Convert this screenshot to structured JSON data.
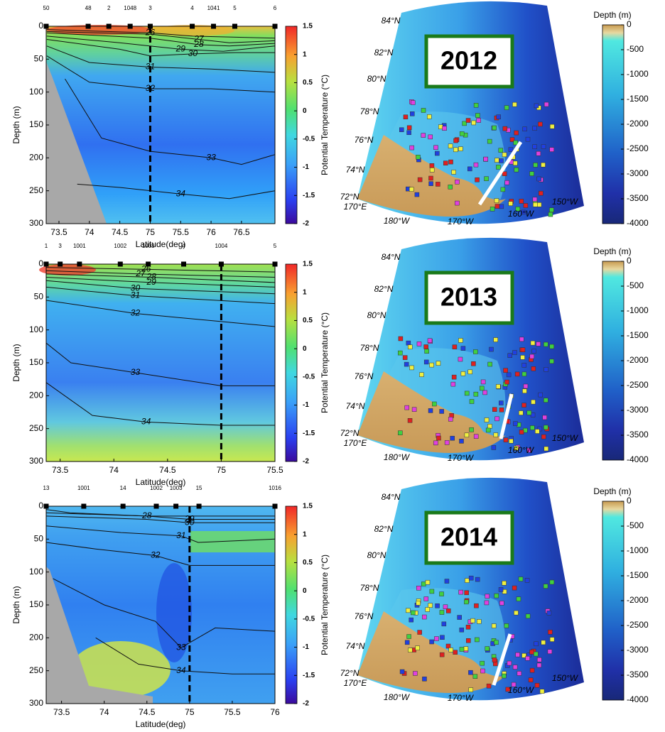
{
  "chart_data": [
    {
      "type": "section",
      "xlabel": "Latitude(deg)",
      "ylabel": "Depth (m)",
      "xlim": [
        73.29,
        77.05
      ],
      "xticks": [
        73.5,
        74,
        74.5,
        75,
        75.5,
        76,
        76.5
      ],
      "ylim": [
        0,
        300
      ],
      "yticks": [
        0,
        50,
        100,
        150,
        200,
        250,
        300
      ],
      "stations": {
        "labels": [
          "50",
          "48",
          "2",
          "1048",
          "3",
          "4",
          "1041",
          "5",
          "6"
        ],
        "x": [
          73.29,
          73.98,
          74.32,
          74.67,
          75.0,
          75.69,
          76.04,
          76.39,
          77.05
        ]
      },
      "marker_x": 75,
      "contours": [
        {
          "label": "26",
          "x": [
            73.3,
            74.3,
            75.0,
            75.7,
            77.05
          ],
          "y": [
            5,
            8,
            10,
            15,
            18
          ]
        },
        {
          "label": "27",
          "x": [
            73.3,
            75.0,
            75.8,
            76.3,
            77.05
          ],
          "y": [
            8,
            12,
            20,
            25,
            22
          ]
        },
        {
          "label": "28",
          "x": [
            73.3,
            75.0,
            75.8,
            76.3,
            77.05
          ],
          "y": [
            10,
            18,
            28,
            30,
            26
          ]
        },
        {
          "label": "29",
          "x": [
            73.3,
            74.5,
            75.5,
            76.2,
            77.05
          ],
          "y": [
            15,
            25,
            35,
            38,
            30
          ]
        },
        {
          "label": "30",
          "x": [
            73.3,
            74.5,
            75.0,
            75.7,
            76.4,
            77.05
          ],
          "y": [
            20,
            35,
            45,
            42,
            40,
            40
          ]
        },
        {
          "label": "31",
          "x": [
            73.3,
            74.0,
            75.0,
            76.0,
            77.05
          ],
          "y": [
            30,
            55,
            62,
            65,
            70
          ]
        },
        {
          "label": "32",
          "x": [
            73.3,
            74.0,
            75.0,
            76.0,
            77.05
          ],
          "y": [
            45,
            85,
            95,
            95,
            100
          ]
        },
        {
          "label": "33",
          "x": [
            73.6,
            74.2,
            75.0,
            76.0,
            76.5,
            77.05
          ],
          "y": [
            80,
            170,
            190,
            200,
            210,
            195
          ]
        },
        {
          "label": "34",
          "x": [
            73.8,
            74.5,
            75.5,
            76.3,
            77.05
          ],
          "y": [
            240,
            245,
            255,
            262,
            250
          ]
        }
      ],
      "colorbar": {
        "label": "Potential Temperature (°C)",
        "lim": [
          -2,
          1.5
        ],
        "ticks": [
          1.5,
          1,
          0.5,
          0,
          -0.5,
          -1,
          -1.5,
          -2
        ]
      }
    },
    {
      "type": "section",
      "xlabel": "Latitude(deg)",
      "ylabel": "Depth (m)",
      "xlim": [
        73.37,
        75.5
      ],
      "xticks": [
        73.5,
        74,
        74.5,
        75,
        75.5
      ],
      "ylim": [
        0,
        300
      ],
      "yticks": [
        0,
        50,
        100,
        150,
        200,
        250,
        300
      ],
      "stations": {
        "labels": [
          "1",
          "3",
          "1001",
          "1002",
          "1003",
          "4",
          "1004",
          "5"
        ],
        "x": [
          73.37,
          73.5,
          73.68,
          74.06,
          74.32,
          74.65,
          75.0,
          75.5
        ]
      },
      "marker_x": 75,
      "contours": [
        {
          "label": "26",
          "x": [
            73.37,
            74.3,
            75.5
          ],
          "y": [
            5,
            8,
            12
          ]
        },
        {
          "label": "27",
          "x": [
            73.37,
            74.25,
            75.5
          ],
          "y": [
            10,
            15,
            20
          ]
        },
        {
          "label": "28",
          "x": [
            73.37,
            74.35,
            75.5
          ],
          "y": [
            15,
            20,
            28
          ]
        },
        {
          "label": "29",
          "x": [
            73.37,
            74.35,
            75.5
          ],
          "y": [
            20,
            28,
            35
          ]
        },
        {
          "label": "30",
          "x": [
            73.37,
            74.2,
            75.5
          ],
          "y": [
            25,
            37,
            45
          ]
        },
        {
          "label": "31",
          "x": [
            73.37,
            74.2,
            75.5
          ],
          "y": [
            35,
            48,
            60
          ]
        },
        {
          "label": "32",
          "x": [
            73.37,
            74.2,
            75.5
          ],
          "y": [
            55,
            75,
            95
          ]
        },
        {
          "label": "33",
          "x": [
            73.37,
            73.6,
            74.2,
            75.0,
            75.5
          ],
          "y": [
            120,
            150,
            165,
            185,
            185
          ]
        },
        {
          "label": "34",
          "x": [
            73.37,
            73.8,
            74.3,
            75.0,
            75.5
          ],
          "y": [
            180,
            230,
            240,
            245,
            245
          ]
        }
      ],
      "colorbar": {
        "label": "Potential Temperature (°C)",
        "lim": [
          -2,
          1.5
        ],
        "ticks": [
          1.5,
          1,
          0.5,
          0,
          -0.5,
          -1,
          -1.5,
          -2
        ]
      }
    },
    {
      "type": "section",
      "xlabel": "Latitude(deg)",
      "ylabel": "Depth (m)",
      "xlim": [
        73.32,
        76
      ],
      "xticks": [
        73.5,
        74,
        74.5,
        75,
        75.5,
        76
      ],
      "ylim": [
        0,
        300
      ],
      "yticks": [
        0,
        50,
        100,
        150,
        200,
        250,
        300
      ],
      "stations": {
        "labels": [
          "13",
          "1001",
          "14",
          "1002",
          "1003",
          "15",
          "1016"
        ],
        "x": [
          73.32,
          73.76,
          74.22,
          74.61,
          74.84,
          75.11,
          76.0
        ]
      },
      "marker_x": 75,
      "contours": [
        {
          "label": "28",
          "x": [
            73.32,
            73.6,
            74.5,
            76
          ],
          "y": [
            5,
            10,
            15,
            15
          ]
        },
        {
          "label": "29",
          "x": [
            73.32,
            74.5,
            75.0,
            76
          ],
          "y": [
            10,
            15,
            20,
            20
          ]
        },
        {
          "label": "30",
          "x": [
            73.32,
            74.5,
            75.0,
            76
          ],
          "y": [
            15,
            20,
            25,
            25
          ]
        },
        {
          "label": "31",
          "x": [
            73.32,
            74.2,
            74.9,
            75.1,
            76
          ],
          "y": [
            30,
            40,
            45,
            55,
            50
          ]
        },
        {
          "label": "32",
          "x": [
            73.32,
            73.9,
            74.6,
            75.0,
            76
          ],
          "y": [
            55,
            65,
            75,
            90,
            90
          ]
        },
        {
          "label": "33",
          "x": [
            73.4,
            74.0,
            74.6,
            74.9,
            75.3,
            76
          ],
          "y": [
            110,
            150,
            175,
            215,
            185,
            190
          ]
        },
        {
          "label": "34",
          "x": [
            73.9,
            74.4,
            74.9,
            75.5,
            76
          ],
          "y": [
            200,
            240,
            250,
            255,
            255
          ]
        }
      ],
      "colorbar": {
        "label": "Potential Temperature (°C)",
        "lim": [
          -2,
          1.5
        ],
        "ticks": [
          1.5,
          1,
          0.5,
          0,
          -0.5,
          -1,
          -1.5,
          -2
        ]
      }
    },
    {
      "type": "map",
      "title": "2012",
      "lat_labels": [
        "84°N",
        "82°N",
        "80°N",
        "78°N",
        "76°N",
        "74°N",
        "72°N"
      ],
      "lon_labels": [
        "170°E",
        "180°W",
        "170°W",
        "160°W",
        "150°W"
      ],
      "colorbar": {
        "label": "Depth (m)",
        "lim": [
          -4000,
          0
        ],
        "ticks": [
          0,
          -500,
          -1000,
          -1500,
          -2000,
          -2500,
          -3000,
          -3500,
          -4000
        ]
      }
    },
    {
      "type": "map",
      "title": "2013",
      "lat_labels": [
        "84°N",
        "82°N",
        "80°N",
        "78°N",
        "76°N",
        "74°N",
        "72°N"
      ],
      "lon_labels": [
        "170°E",
        "180°W",
        "170°W",
        "160°W",
        "150°W"
      ],
      "colorbar": {
        "label": "Depth (m)",
        "lim": [
          -4000,
          0
        ],
        "ticks": [
          0,
          -500,
          -1000,
          -1500,
          -2000,
          -2500,
          -3000,
          -3500,
          -4000
        ]
      }
    },
    {
      "type": "map",
      "title": "2014",
      "lat_labels": [
        "84°N",
        "82°N",
        "80°N",
        "78°N",
        "76°N",
        "74°N",
        "72°N"
      ],
      "lon_labels": [
        "170°E",
        "180°W",
        "170°W",
        "160°W",
        "150°W"
      ],
      "colorbar": {
        "label": "Depth (m)",
        "lim": [
          -4000,
          0
        ],
        "ticks": [
          0,
          -500,
          -1000,
          -1500,
          -2000,
          -2500,
          -3000,
          -3500,
          -4000
        ]
      }
    }
  ]
}
